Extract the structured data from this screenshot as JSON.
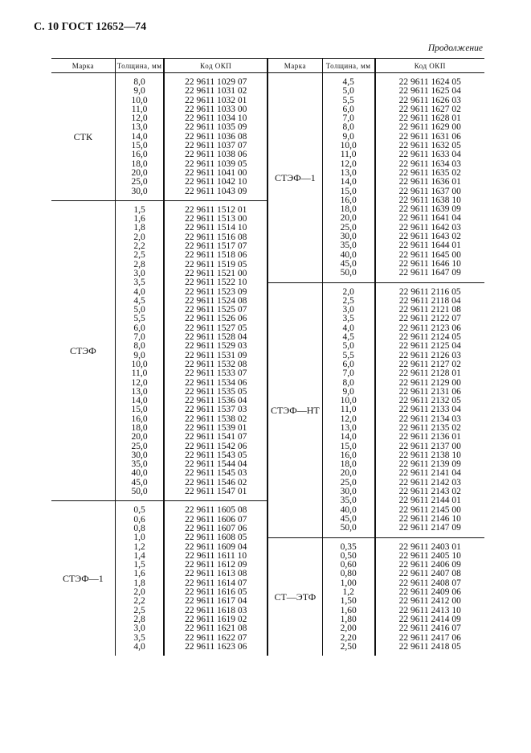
{
  "page_header": "С. 10 ГОСТ 12652—74",
  "continuation": "Продолжение",
  "columns": {
    "mark": "Марка",
    "thickness": "Толщина, мм",
    "code": "Код ОКП"
  },
  "left_groups": [
    {
      "mark": "СТК",
      "rows": [
        [
          "8,0",
          "22 9611 1029 07"
        ],
        [
          "9,0",
          "22 9611 1031 02"
        ],
        [
          "10,0",
          "22 9611 1032 01"
        ],
        [
          "11,0",
          "22 9611 1033 00"
        ],
        [
          "12,0",
          "22 9611 1034 10"
        ],
        [
          "13,0",
          "22 9611 1035 09"
        ],
        [
          "14,0",
          "22 9611 1036 08"
        ],
        [
          "15,0",
          "22 9611 1037 07"
        ],
        [
          "16,0",
          "22 9611 1038 06"
        ],
        [
          "18,0",
          "22 9611 1039 05"
        ],
        [
          "20,0",
          "22 9611 1041 00"
        ],
        [
          "25,0",
          "22 9611 1042 10"
        ],
        [
          "30,0",
          "22 9611 1043 09"
        ]
      ]
    },
    {
      "mark": "СТЭФ",
      "rows": [
        [
          "1,5",
          "22 9611 1512 01"
        ],
        [
          "1,6",
          "22 9611 1513 00"
        ],
        [
          "1,8",
          "22 9611 1514 10"
        ],
        [
          "2,0",
          "22 9611 1516 08"
        ],
        [
          "2,2",
          "22 9611 1517 07"
        ],
        [
          "2,5",
          "22 9611 1518 06"
        ],
        [
          "2,8",
          "22 9611 1519 05"
        ],
        [
          "3,0",
          "22 9611 1521 00"
        ],
        [
          "3,5",
          "22 9611 1522 10"
        ],
        [
          "4,0",
          "22 9611 1523 09"
        ],
        [
          "4,5",
          "22 9611 1524 08"
        ],
        [
          "5,0",
          "22 9611 1525 07"
        ],
        [
          "5,5",
          "22 9611 1526 06"
        ],
        [
          "6,0",
          "22 9611 1527 05"
        ],
        [
          "7,0",
          "22 9611 1528 04"
        ],
        [
          "8,0",
          "22 9611 1529 03"
        ],
        [
          "9,0",
          "22 9611 1531 09"
        ],
        [
          "10,0",
          "22 9611 1532 08"
        ],
        [
          "11,0",
          "22 9611 1533 07"
        ],
        [
          "12,0",
          "22 9611 1534 06"
        ],
        [
          "13,0",
          "22 9611 1535 05"
        ],
        [
          "14,0",
          "22 9611 1536 04"
        ],
        [
          "15,0",
          "22 9611 1537 03"
        ],
        [
          "16,0",
          "22 9611 1538 02"
        ],
        [
          "18,0",
          "22 9611 1539 01"
        ],
        [
          "20,0",
          "22 9611 1541 07"
        ],
        [
          "25,0",
          "22 9611 1542 06"
        ],
        [
          "30,0",
          "22 9611 1543 05"
        ],
        [
          "35,0",
          "22 9611 1544 04"
        ],
        [
          "40,0",
          "22 9611 1545 03"
        ],
        [
          "45,0",
          "22 9611 1546 02"
        ],
        [
          "50,0",
          "22 9611 1547 01"
        ]
      ]
    },
    {
      "mark": "СТЭФ—1",
      "rows": [
        [
          "0,5",
          "22 9611 1605 08"
        ],
        [
          "0,6",
          "22 9611 1606 07"
        ],
        [
          "0,8",
          "22 9611 1607 06"
        ],
        [
          "1,0",
          "22 9611 1608 05"
        ],
        [
          "1,2",
          "22 9611 1609 04"
        ],
        [
          "1,4",
          "22 9611 1611 10"
        ],
        [
          "1,5",
          "22 9611 1612 09"
        ],
        [
          "1,6",
          "22 9611 1613 08"
        ],
        [
          "1,8",
          "22 9611 1614 07"
        ],
        [
          "2,0",
          "22 9611 1616 05"
        ],
        [
          "2,2",
          "22 9611 1617 04"
        ],
        [
          "2,5",
          "22 9611 1618 03"
        ],
        [
          "2,8",
          "22 9611 1619 02"
        ],
        [
          "3,0",
          "22 9611 1621 08"
        ],
        [
          "3,5",
          "22 9611 1622 07"
        ],
        [
          "4,0",
          "22 9611 1623 06"
        ]
      ]
    }
  ],
  "right_groups": [
    {
      "mark": "СТЭФ—1",
      "rows": [
        [
          "4,5",
          "22 9611 1624 05"
        ],
        [
          "5,0",
          "22 9611 1625 04"
        ],
        [
          "5,5",
          "22 9611 1626 03"
        ],
        [
          "6,0",
          "22 9611 1627 02"
        ],
        [
          "7,0",
          "22 9611 1628 01"
        ],
        [
          "8,0",
          "22 9611 1629 00"
        ],
        [
          "9,0",
          "22 9611 1631 06"
        ],
        [
          "10,0",
          "22 9611 1632 05"
        ],
        [
          "11,0",
          "22 9611 1633 04"
        ],
        [
          "12,0",
          "22 9611 1634 03"
        ],
        [
          "13,0",
          "22 9611 1635 02"
        ],
        [
          "14,0",
          "22 9611 1636 01"
        ],
        [
          "15,0",
          "22 9611 1637 00"
        ],
        [
          "16,0",
          "22 9611 1638 10"
        ],
        [
          "18,0",
          "22 9611 1639 09"
        ],
        [
          "20,0",
          "22 9611 1641 04"
        ],
        [
          "25,0",
          "22 9611 1642 03"
        ],
        [
          "30,0",
          "22 9611 1643 02"
        ],
        [
          "35,0",
          "22 9611 1644 01"
        ],
        [
          "40,0",
          "22 9611 1645 00"
        ],
        [
          "45,0",
          "22 9611 1646 10"
        ],
        [
          "50,0",
          "22 9611 1647 09"
        ]
      ]
    },
    {
      "mark": "СТЭФ—НТ",
      "rows": [
        [
          "2,0",
          "22 9611 2116 05"
        ],
        [
          "2,5",
          "22 9611 2118 04"
        ],
        [
          "3,0",
          "22 9611 2121 08"
        ],
        [
          "3,5",
          "22 9611 2122 07"
        ],
        [
          "4,0",
          "22 9611 2123 06"
        ],
        [
          "4,5",
          "22 9611 2124 05"
        ],
        [
          "5,0",
          "22 9611 2125 04"
        ],
        [
          "5,5",
          "22 9611 2126 03"
        ],
        [
          "6,0",
          "22 9611 2127 02"
        ],
        [
          "7,0",
          "22 9611 2128 01"
        ],
        [
          "8,0",
          "22 9611 2129 00"
        ],
        [
          "9,0",
          "22 9611 2131 06"
        ],
        [
          "10,0",
          "22 9611 2132 05"
        ],
        [
          "11,0",
          "22 9611 2133 04"
        ],
        [
          "12,0",
          "22 9611 2134 03"
        ],
        [
          "13,0",
          "22 9611 2135 02"
        ],
        [
          "14,0",
          "22 9611 2136 01"
        ],
        [
          "15,0",
          "22 9611 2137 00"
        ],
        [
          "16,0",
          "22 9611 2138 10"
        ],
        [
          "18,0",
          "22 9611 2139 09"
        ],
        [
          "20,0",
          "22 9611 2141 04"
        ],
        [
          "25,0",
          "22 9611 2142 03"
        ],
        [
          "30,0",
          "22 9611 2143 02"
        ],
        [
          "35,0",
          "22 9611 2144 01"
        ],
        [
          "40,0",
          "22 9611 2145 00"
        ],
        [
          "45,0",
          "22 9611 2146 10"
        ],
        [
          "50,0",
          "22 9611 2147 09"
        ]
      ]
    },
    {
      "mark": "СТ—ЭТФ",
      "rows": [
        [
          "0,35",
          "22 9611 2403 01"
        ],
        [
          "0,50",
          "22 9611 2405 10"
        ],
        [
          "0,60",
          "22 9611 2406 09"
        ],
        [
          "0,80",
          "22 9611 2407 08"
        ],
        [
          "1,00",
          "22 9611 2408 07"
        ],
        [
          "1,2",
          "22 9611 2409 06"
        ],
        [
          "1,50",
          "22 9611 2412 00"
        ],
        [
          "1,60",
          "22 9611 2413 10"
        ],
        [
          "1,80",
          "22 9611 2414 09"
        ],
        [
          "2,00",
          "22 9611 2416 07"
        ],
        [
          "2,20",
          "22 9611 2417 06"
        ],
        [
          "2,50",
          "22 9611 2418 05"
        ]
      ]
    }
  ]
}
